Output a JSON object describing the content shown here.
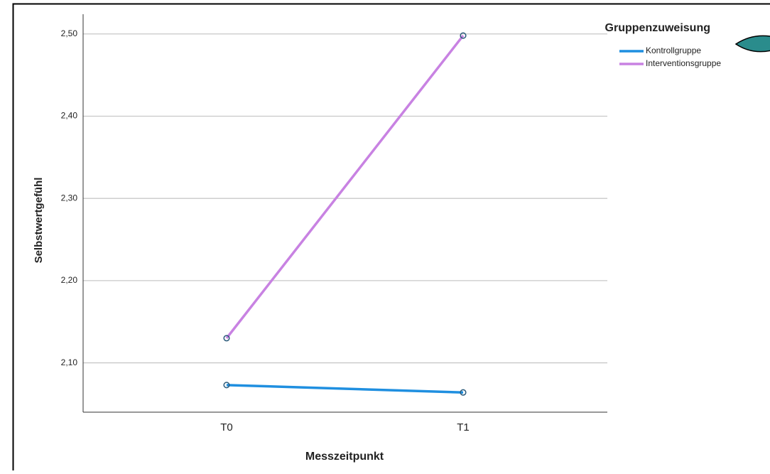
{
  "chart_data": {
    "type": "line",
    "x_label": "Messzeitpunkt",
    "y_label": "Selbstwertgefühl",
    "legend_title": "Gruppenzuweisung",
    "categories": [
      "T0",
      "T1"
    ],
    "series": [
      {
        "name": "Kontrollgruppe",
        "color": "#1f8fe0",
        "values": [
          2.073,
          2.064
        ]
      },
      {
        "name": "Interventionsgruppe",
        "color": "#c882e2",
        "values": [
          2.13,
          2.498
        ]
      }
    ],
    "ylim": [
      2.04,
      2.524
    ],
    "yticks": [
      {
        "value": 2.1,
        "label": "2,10"
      },
      {
        "value": 2.2,
        "label": "2,20"
      },
      {
        "value": 2.3,
        "label": "2,30"
      },
      {
        "value": 2.4,
        "label": "2,40"
      },
      {
        "value": 2.5,
        "label": "2,50"
      }
    ],
    "grid": true,
    "legend": "right"
  }
}
